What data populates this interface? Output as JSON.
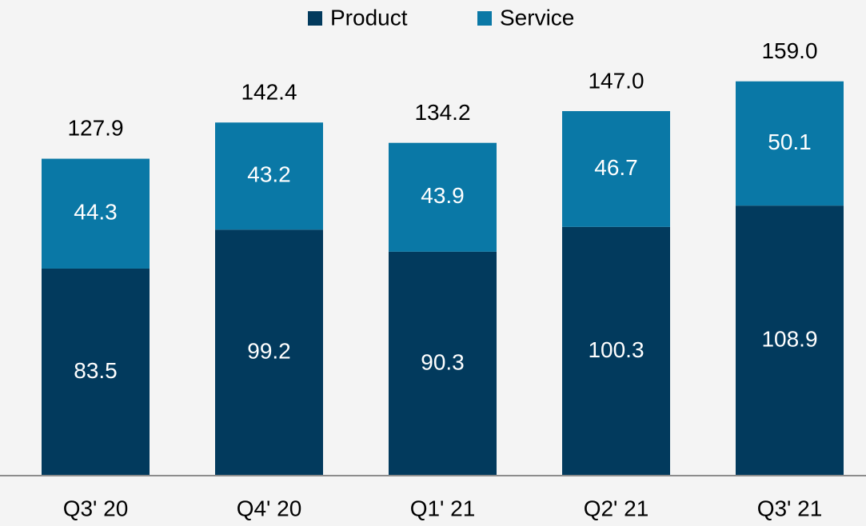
{
  "chart_data": {
    "type": "stacked_bar",
    "categories": [
      "Q3' 20",
      "Q4' 20",
      "Q1' 21",
      "Q2' 21",
      "Q3' 21"
    ],
    "series": [
      {
        "name": "Product",
        "color": "#023a5d",
        "values": [
          83.5,
          99.2,
          90.3,
          100.3,
          108.9
        ]
      },
      {
        "name": "Service",
        "color": "#0a78a6",
        "values": [
          44.3,
          43.2,
          43.9,
          46.7,
          50.1
        ]
      }
    ],
    "totals": [
      127.9,
      142.4,
      134.2,
      147.0,
      159.0
    ],
    "total_labels": [
      "127.9",
      "142.4",
      "134.2",
      "147.0",
      "159.0"
    ],
    "ylim": [
      0,
      186
    ],
    "legend": "top"
  }
}
